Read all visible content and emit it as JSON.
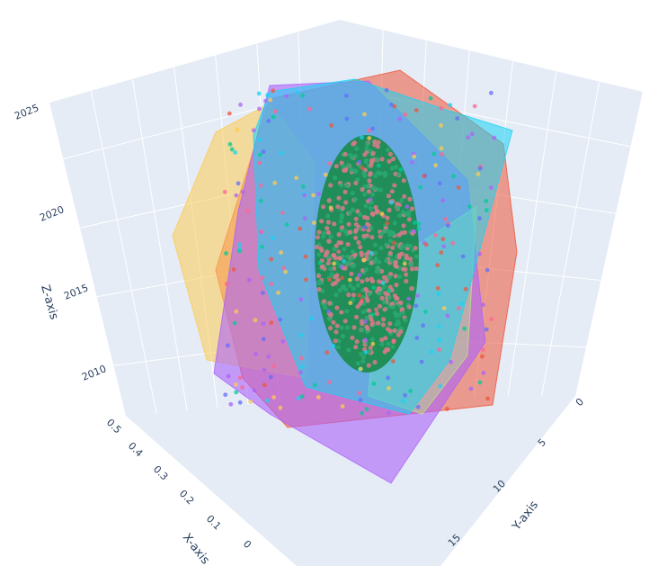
{
  "chart_data": {
    "type": "scatter3d",
    "title": "",
    "axes": {
      "x": {
        "label": "X-axis",
        "ticks": [
          "0.5",
          "0.4",
          "0.3",
          "0.2",
          "0.1",
          "0"
        ],
        "range": [
          0,
          0.5
        ]
      },
      "y": {
        "label": "Y-axis",
        "ticks": [
          "0",
          "5",
          "10",
          "15"
        ],
        "range": [
          0,
          17
        ]
      },
      "z": {
        "label": "Z-axis",
        "ticks": [
          "2010",
          "2015",
          "2020",
          "2025"
        ],
        "range": [
          2006,
          2026
        ]
      }
    },
    "grid": true,
    "legend": "none",
    "colors": {
      "scene_bg": "#e5ecf6",
      "grid": "#ffffff",
      "text": "#2a3f5f",
      "hulls": [
        "#ef553b",
        "#fecb52",
        "#ab63fa",
        "#b6e880",
        "#19d3f3",
        "#636efa",
        "#00cc96",
        "#ff6692"
      ],
      "ellipsoid": "#1a8a4a"
    },
    "series": [
      {
        "kind": "convex-hull",
        "color": "#ef553b",
        "note": "red hull"
      },
      {
        "kind": "convex-hull",
        "color": "#fecb52",
        "note": "yellow hull"
      },
      {
        "kind": "convex-hull",
        "color": "#ab63fa",
        "note": "purple hull"
      },
      {
        "kind": "convex-hull",
        "color": "#19d3f3",
        "note": "cyan hull"
      },
      {
        "kind": "ellipsoid",
        "color": "#1a8a4a",
        "note": "dense green core"
      }
    ]
  }
}
